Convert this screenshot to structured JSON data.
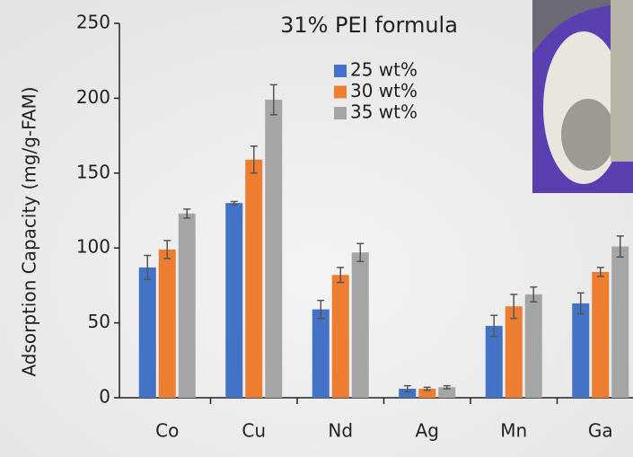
{
  "chart_data": {
    "type": "bar",
    "title": "31% PEI formula",
    "y_label": "Adsorption Capacity (mg/g-FAM)",
    "categories": [
      "Co",
      "Cu",
      "Nd",
      "Ag",
      "Mn",
      "Ga"
    ],
    "series": [
      {
        "name": "25 wt%",
        "color": "#4472c4",
        "values": [
          87,
          130,
          59,
          6,
          48,
          63
        ],
        "errors": [
          8,
          1,
          6,
          2,
          7,
          7
        ]
      },
      {
        "name": "30 wt%",
        "color": "#ed7d31",
        "values": [
          99,
          159,
          82,
          6,
          61,
          84
        ],
        "errors": [
          6,
          9,
          5,
          1,
          8,
          3
        ]
      },
      {
        "name": "35 wt%",
        "color": "#a5a5a5",
        "values": [
          123,
          199,
          97,
          7,
          69,
          101
        ],
        "errors": [
          3,
          10,
          6,
          1,
          5,
          7
        ]
      }
    ],
    "ylim": [
      0,
      250
    ],
    "yticks": [
      0,
      50,
      100,
      150,
      200,
      250
    ],
    "grid": false
  }
}
